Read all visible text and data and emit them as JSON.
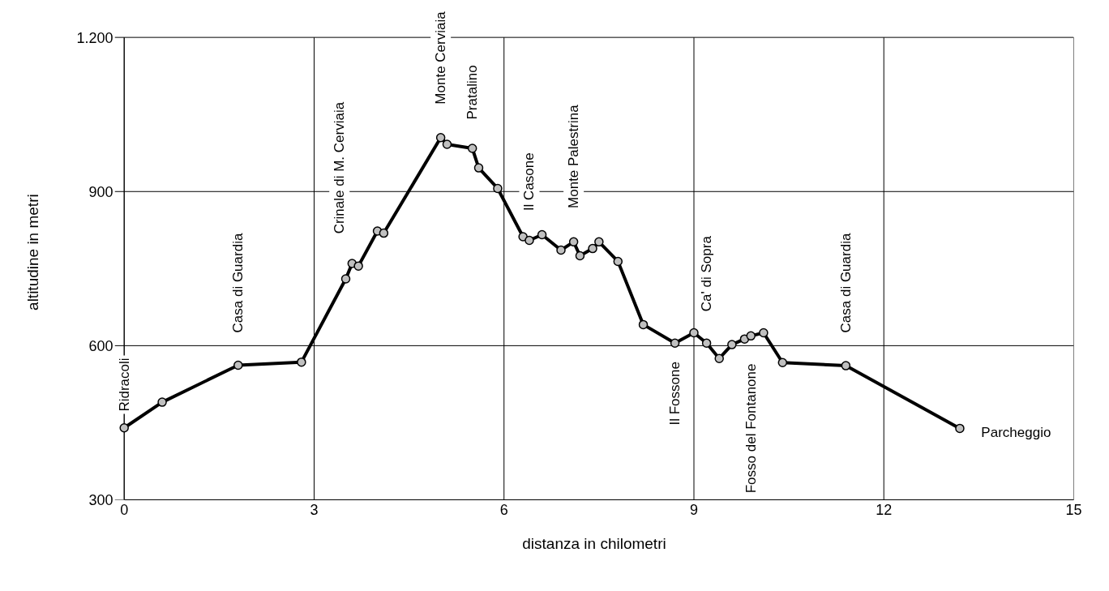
{
  "chart_data": {
    "type": "line",
    "xlabel": "distanza in chilometri",
    "ylabel": "altitudine  in metri",
    "x": [
      0,
      0.6,
      1.8,
      2.8,
      3.5,
      3.6,
      3.7,
      4.0,
      4.1,
      5.0,
      5.1,
      5.5,
      5.6,
      5.9,
      6.3,
      6.4,
      6.6,
      6.9,
      7.1,
      7.2,
      7.4,
      7.5,
      7.8,
      8.2,
      8.7,
      9.0,
      9.2,
      9.4,
      9.6,
      9.8,
      9.9,
      10.1,
      10.4,
      11.4,
      13.2
    ],
    "series": [
      {
        "color": "#000000",
        "values": [
          440,
          490,
          562,
          568,
          730,
          760,
          755,
          823,
          819,
          1005,
          992,
          984,
          946,
          906,
          812,
          805,
          816,
          786,
          802,
          775,
          789,
          802,
          764,
          641,
          605,
          625,
          605,
          575,
          602,
          613,
          619,
          625,
          567,
          561,
          439
        ]
      }
    ],
    "xlim": [
      0,
      15
    ],
    "xticks": [
      0,
      3,
      6,
      9,
      12,
      15
    ],
    "ylim": [
      300,
      1200
    ],
    "yticks": [
      300,
      600,
      900,
      {
        "value": 1200,
        "label": "1.200"
      }
    ],
    "grid": true,
    "marker": "circle",
    "line_style": "solid",
    "annotations": [
      "Ridracoli",
      "Casa di Guardia",
      "Crinale di M. Cerviaia",
      "Monte Cerviaia",
      "Pratalino",
      "Il Casone",
      "Monte Palestrina",
      "Il Fossone",
      "Ca' di Sopra",
      "Fosso del Fontanone",
      "Casa di Guardia",
      "Parcheggio"
    ]
  }
}
